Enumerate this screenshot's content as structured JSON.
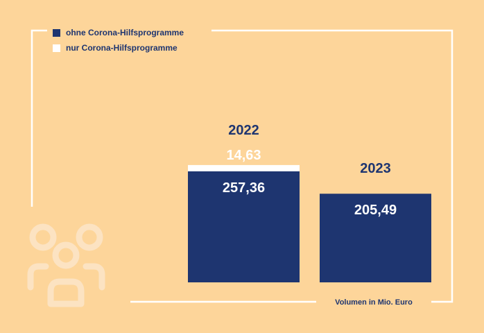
{
  "colors": {
    "background": "#fdd59a",
    "frame": "#ffffff",
    "primary": "#1e3570",
    "secondary": "#ffffff",
    "icon": "#fce3c2"
  },
  "chart_data": {
    "type": "bar",
    "stacked": true,
    "categories": [
      "2022",
      "2023"
    ],
    "series": [
      {
        "name": "ohne Corona-Hilfsprogramme",
        "values": [
          257.36,
          205.49
        ],
        "labels": [
          "257,36",
          "205,49"
        ],
        "color": "#1e3570"
      },
      {
        "name": "nur Corona-Hilfsprogramme",
        "values": [
          14.63,
          0
        ],
        "labels": [
          "14,63",
          ""
        ],
        "color": "#ffffff"
      }
    ],
    "xlabel": "Volumen in Mio. Euro",
    "legend_position": "top-left",
    "grid": false,
    "decorative_icon": "people-group-icon"
  }
}
